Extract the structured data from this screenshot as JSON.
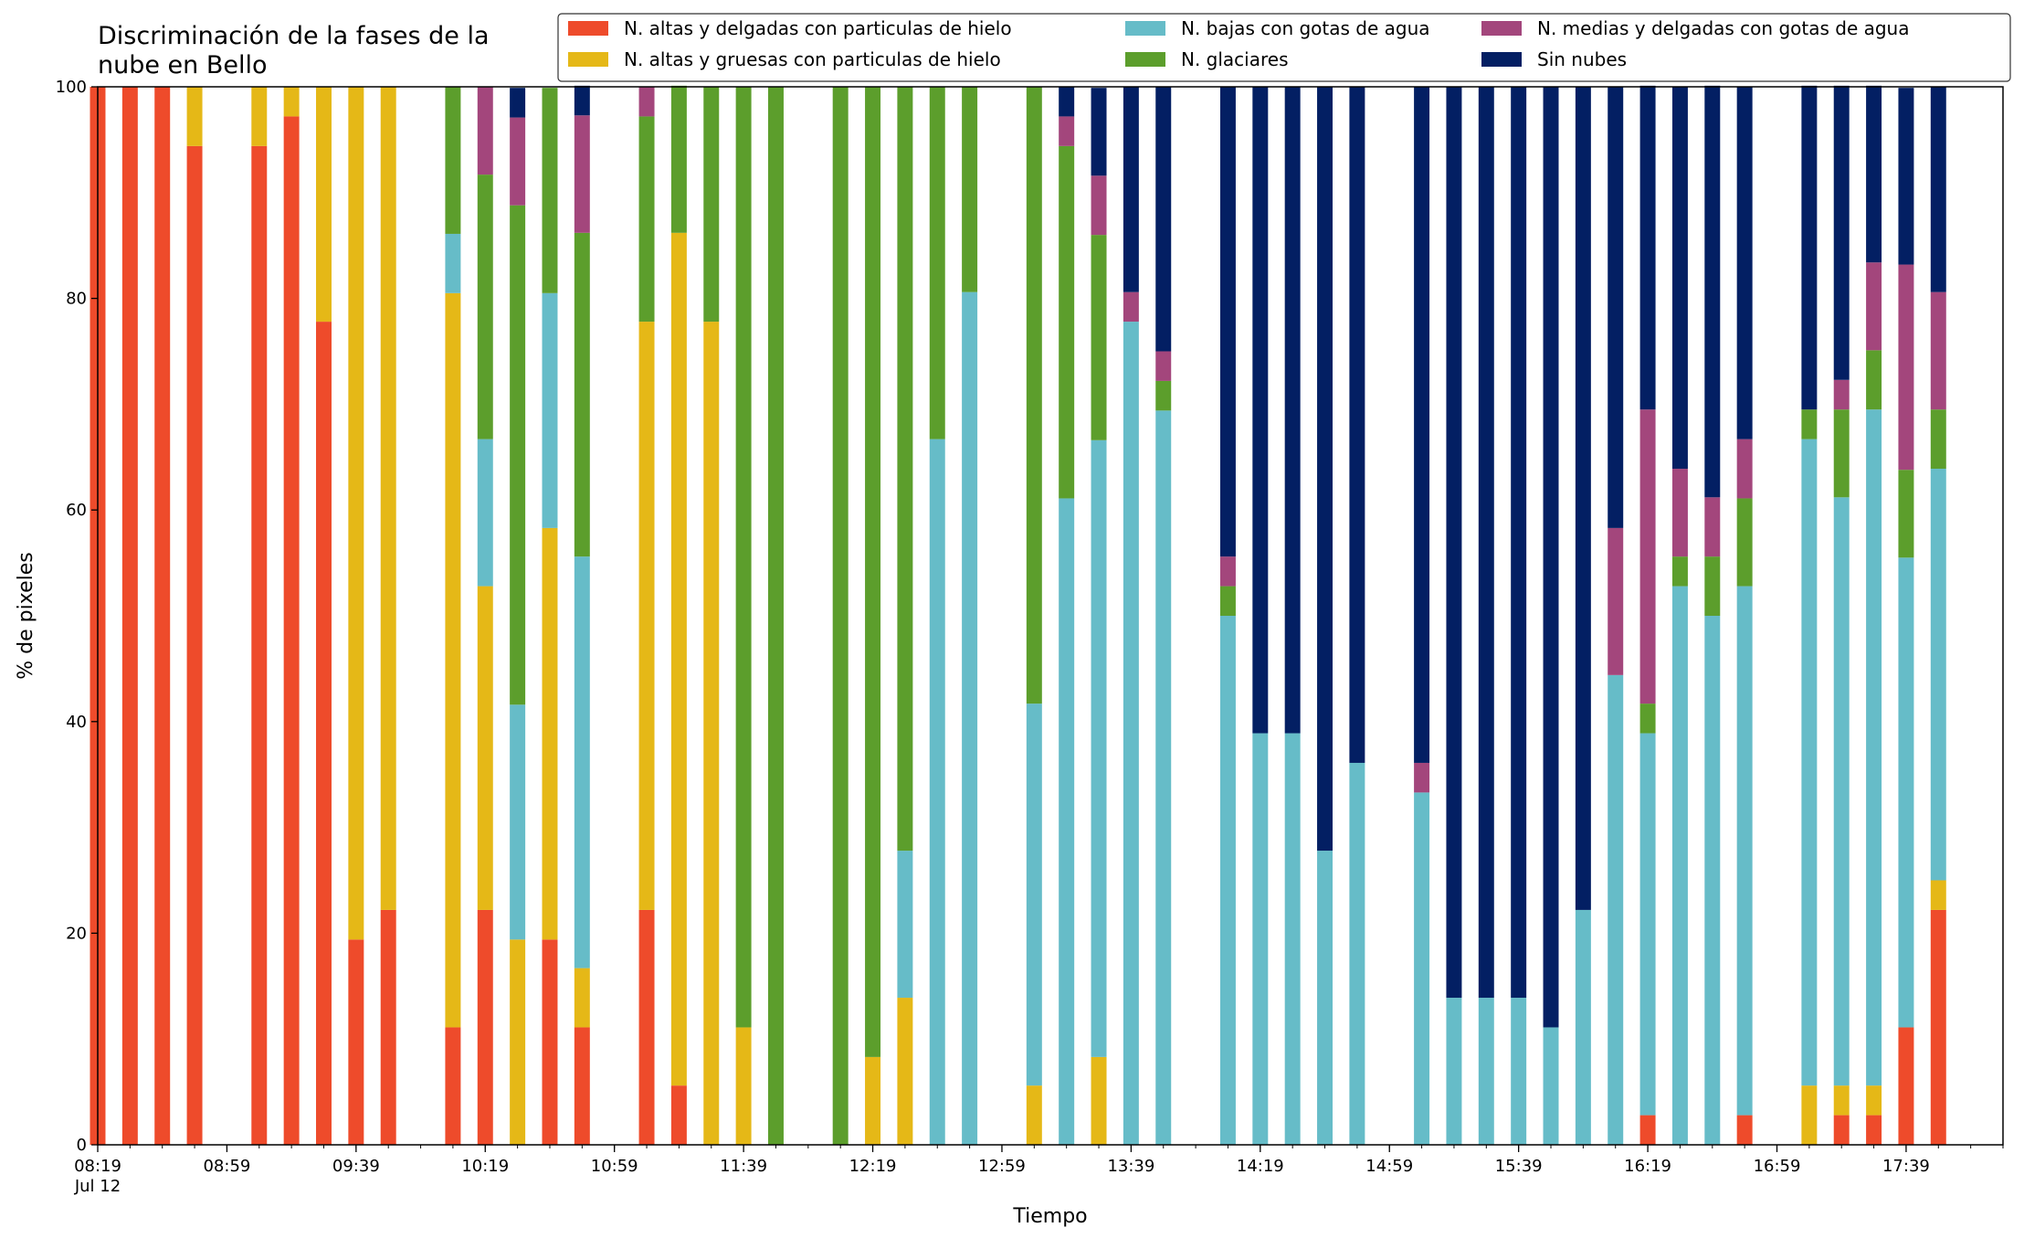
{
  "chart_data": {
    "type": "bar",
    "stacked": true,
    "title": "Discriminación de la fases de la\nnube en Bello",
    "xlabel": "Tiempo",
    "ylabel": "% de pixeles",
    "ylim": [
      0,
      100
    ],
    "yticks": [
      0,
      20,
      40,
      60,
      80,
      100
    ],
    "xlim_minutes": [
      0,
      590
    ],
    "xticks": [
      {
        "min": 0,
        "label": "08:19",
        "sub": "Jul 12"
      },
      {
        "min": 40,
        "label": "08:59"
      },
      {
        "min": 80,
        "label": "09:39"
      },
      {
        "min": 120,
        "label": "10:19"
      },
      {
        "min": 160,
        "label": "10:59"
      },
      {
        "min": 200,
        "label": "11:39"
      },
      {
        "min": 240,
        "label": "12:19"
      },
      {
        "min": 280,
        "label": "12:59"
      },
      {
        "min": 320,
        "label": "13:39"
      },
      {
        "min": 360,
        "label": "14:19"
      },
      {
        "min": 400,
        "label": "14:59"
      },
      {
        "min": 440,
        "label": "15:39"
      },
      {
        "min": 480,
        "label": "16:19"
      },
      {
        "min": 520,
        "label": "16:59"
      },
      {
        "min": 560,
        "label": "17:39"
      }
    ],
    "minor_tick_step_minutes": 10,
    "bar_width_minutes": 4.8,
    "grid": false,
    "legend_position": "top-right",
    "legend_columns": 3,
    "series": [
      {
        "name": "N. altas y delgadas con particulas de hielo",
        "color": "#ee4b2b"
      },
      {
        "name": "N. altas y gruesas con particulas de hielo",
        "color": "#e5b817"
      },
      {
        "name": "N. bajas con gotas de agua",
        "color": "#66bcc8"
      },
      {
        "name": "N. glaciares",
        "color": "#5c9e2c"
      },
      {
        "name": "N. medias y delgadas con gotas de agua",
        "color": "#a3467c"
      },
      {
        "name": "Sin nubes",
        "color": "#031f63"
      }
    ],
    "bars": [
      {
        "x": 0,
        "values": [
          100,
          0,
          0,
          0,
          0,
          0
        ]
      },
      {
        "x": 10,
        "values": [
          100,
          0,
          0,
          0,
          0,
          0
        ]
      },
      {
        "x": 20,
        "values": [
          100,
          0,
          0,
          0,
          0,
          0
        ]
      },
      {
        "x": 30,
        "values": [
          94.4,
          5.6,
          0,
          0,
          0,
          0
        ]
      },
      {
        "x": 50,
        "values": [
          94.4,
          5.6,
          0,
          0,
          0,
          0
        ]
      },
      {
        "x": 60,
        "values": [
          97.2,
          2.8,
          0,
          0,
          0,
          0
        ]
      },
      {
        "x": 70,
        "values": [
          77.8,
          22.2,
          0,
          0,
          0,
          0
        ]
      },
      {
        "x": 80,
        "values": [
          19.4,
          80.6,
          0,
          0,
          0,
          0
        ]
      },
      {
        "x": 90,
        "values": [
          22.2,
          77.8,
          0,
          0,
          0,
          0
        ]
      },
      {
        "x": 110,
        "values": [
          11.1,
          69.4,
          5.6,
          13.9,
          0,
          0
        ]
      },
      {
        "x": 120,
        "values": [
          22.2,
          30.6,
          13.9,
          25.0,
          8.3,
          0
        ]
      },
      {
        "x": 130,
        "values": [
          0,
          19.4,
          22.2,
          47.2,
          8.3,
          2.8
        ]
      },
      {
        "x": 140,
        "values": [
          19.4,
          38.9,
          22.2,
          19.4,
          0,
          0
        ]
      },
      {
        "x": 150,
        "values": [
          11.1,
          5.6,
          38.9,
          30.6,
          11.1,
          2.8
        ]
      },
      {
        "x": 170,
        "values": [
          22.2,
          55.6,
          0,
          19.4,
          2.8,
          0
        ]
      },
      {
        "x": 180,
        "values": [
          5.6,
          80.6,
          0,
          13.9,
          0,
          0
        ]
      },
      {
        "x": 190,
        "values": [
          0,
          77.8,
          0,
          22.2,
          0,
          0
        ]
      },
      {
        "x": 200,
        "values": [
          0,
          11.1,
          0,
          88.9,
          0,
          0
        ]
      },
      {
        "x": 210,
        "values": [
          0,
          0,
          0,
          100,
          0,
          0
        ]
      },
      {
        "x": 230,
        "values": [
          0,
          0,
          0,
          100,
          0,
          0
        ]
      },
      {
        "x": 240,
        "values": [
          0,
          8.3,
          0,
          91.7,
          0,
          0
        ]
      },
      {
        "x": 250,
        "values": [
          0,
          13.9,
          13.9,
          72.2,
          0,
          0
        ]
      },
      {
        "x": 260,
        "values": [
          0,
          0,
          66.7,
          33.3,
          0,
          0
        ]
      },
      {
        "x": 270,
        "values": [
          0,
          0,
          80.6,
          19.4,
          0,
          0
        ]
      },
      {
        "x": 290,
        "values": [
          0,
          5.6,
          36.1,
          58.3,
          0,
          0
        ]
      },
      {
        "x": 300,
        "values": [
          0,
          0,
          61.1,
          33.3,
          2.8,
          2.8
        ]
      },
      {
        "x": 310,
        "values": [
          0,
          8.3,
          58.3,
          19.4,
          5.6,
          8.3
        ]
      },
      {
        "x": 320,
        "values": [
          0,
          0,
          77.8,
          0,
          2.8,
          19.4
        ]
      },
      {
        "x": 330,
        "values": [
          0,
          0,
          69.4,
          2.8,
          2.8,
          25.0
        ]
      },
      {
        "x": 350,
        "values": [
          0,
          0,
          50.0,
          2.8,
          2.8,
          44.4
        ]
      },
      {
        "x": 360,
        "values": [
          0,
          0,
          38.9,
          0,
          0,
          61.1
        ]
      },
      {
        "x": 370,
        "values": [
          0,
          0,
          38.9,
          0,
          0,
          61.1
        ]
      },
      {
        "x": 380,
        "values": [
          0,
          0,
          27.8,
          0,
          0,
          72.2
        ]
      },
      {
        "x": 390,
        "values": [
          0,
          0,
          36.1,
          0,
          0,
          63.9
        ]
      },
      {
        "x": 410,
        "values": [
          0,
          0,
          33.3,
          0,
          2.8,
          63.9
        ]
      },
      {
        "x": 420,
        "values": [
          0,
          0,
          13.9,
          0,
          0,
          86.1
        ]
      },
      {
        "x": 430,
        "values": [
          0,
          0,
          13.9,
          0,
          0,
          86.1
        ]
      },
      {
        "x": 440,
        "values": [
          0,
          0,
          13.9,
          0,
          0,
          86.1
        ]
      },
      {
        "x": 450,
        "values": [
          0,
          0,
          11.1,
          0,
          0,
          88.9
        ]
      },
      {
        "x": 460,
        "values": [
          0,
          0,
          22.2,
          0,
          0,
          77.8
        ]
      },
      {
        "x": 470,
        "values": [
          0,
          0,
          44.4,
          0,
          13.9,
          41.7
        ]
      },
      {
        "x": 480,
        "values": [
          2.8,
          0,
          36.1,
          2.8,
          27.8,
          30.6
        ]
      },
      {
        "x": 490,
        "values": [
          0,
          0,
          52.8,
          2.8,
          8.3,
          36.1
        ]
      },
      {
        "x": 500,
        "values": [
          0,
          0,
          50.0,
          5.6,
          5.6,
          38.9
        ]
      },
      {
        "x": 510,
        "values": [
          2.8,
          0,
          50.0,
          8.3,
          5.6,
          33.3
        ]
      },
      {
        "x": 530,
        "values": [
          0,
          5.6,
          61.1,
          2.8,
          0,
          30.6
        ]
      },
      {
        "x": 540,
        "values": [
          2.8,
          2.8,
          55.6,
          8.3,
          2.8,
          27.8
        ]
      },
      {
        "x": 550,
        "values": [
          2.8,
          2.8,
          63.9,
          5.6,
          8.3,
          16.7
        ]
      },
      {
        "x": 560,
        "values": [
          11.1,
          0,
          44.4,
          8.3,
          19.4,
          16.7
        ]
      },
      {
        "x": 570,
        "values": [
          22.2,
          2.8,
          38.9,
          5.6,
          11.1,
          19.4
        ]
      }
    ]
  }
}
